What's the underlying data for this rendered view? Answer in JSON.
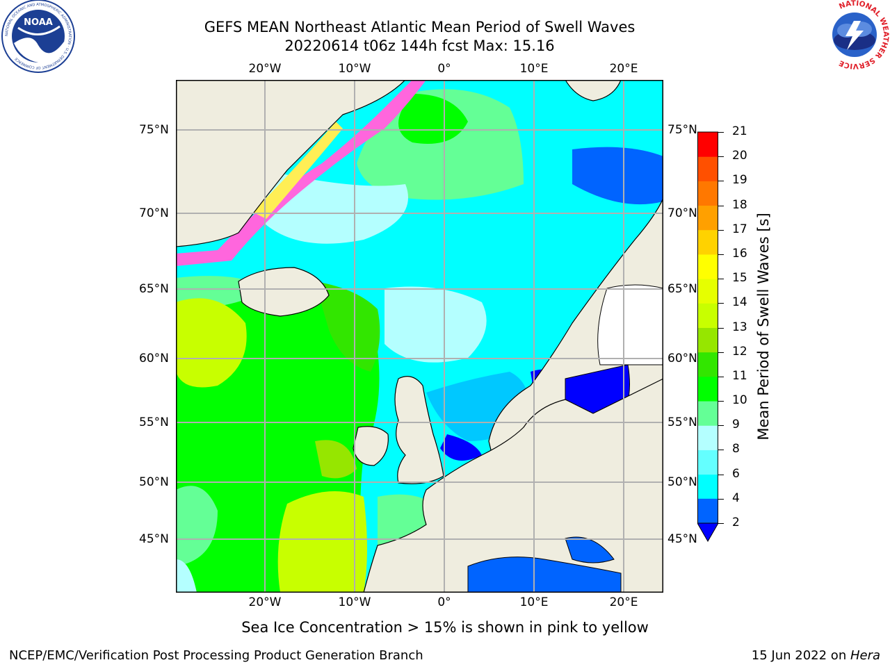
{
  "header": {
    "title_line1": "GEFS MEAN Northeast Atlantic Mean Period of Swell Waves",
    "title_line2": "20220614 t06z 144h fcst   Max: 15.16"
  },
  "logos": {
    "noaa_text": "NOAA",
    "noaa_ring_text": "NATIONAL OCEANIC AND ATMOSPHERIC ADMINISTRATION · U.S. DEPARTMENT OF COMMERCE",
    "nws_ring_text": "NATIONAL WEATHER SERVICE"
  },
  "map": {
    "lon_labels": [
      "20°W",
      "10°W",
      "0°",
      "10°E",
      "20°E"
    ],
    "lat_labels": [
      "75°N",
      "70°N",
      "65°N",
      "60°N",
      "55°N",
      "50°N",
      "45°N"
    ],
    "lon_values": [
      -20,
      -10,
      0,
      10,
      20
    ],
    "lat_values": [
      75,
      70,
      65,
      60,
      55,
      50,
      45
    ],
    "colors": {
      "land": "#efeddf",
      "grid": "#b0b0b0",
      "coast": "#000000",
      "ice_pink": "#ff66dd",
      "ice_yellow": "#ffee55"
    }
  },
  "colorbar": {
    "label": "Mean Period of Swell Waves [s]",
    "ticks": [
      "2",
      "4",
      "6",
      "8",
      "9",
      "10",
      "11",
      "12",
      "13",
      "14",
      "15",
      "16",
      "17",
      "18",
      "19",
      "20",
      "21"
    ],
    "levels": [
      2,
      4,
      6,
      8,
      9,
      10,
      11,
      12,
      13,
      14,
      15,
      16,
      17,
      18,
      19,
      20,
      21
    ],
    "colors": [
      "#0064ff",
      "#00c8ff",
      "#00ffff",
      "#64ffff",
      "#b4ffff",
      "#64ff96",
      "#00ff00",
      "#32e600",
      "#96e600",
      "#c8ff00",
      "#e6ff00",
      "#ffff00",
      "#ffd200",
      "#ffa000",
      "#ff7800",
      "#ff5000",
      "#ff0000"
    ],
    "extend_color": "#0000ff"
  },
  "caption": "Sea Ice Concentration > 15% is shown in pink to yellow",
  "footer": {
    "left": "NCEP/EMC/Verification Post Processing Product Generation Branch",
    "right_date": "15 Jun 2022 on ",
    "right_host": "Hera"
  }
}
